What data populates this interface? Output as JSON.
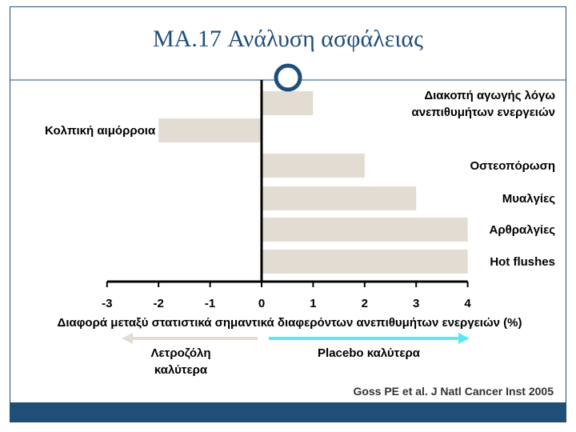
{
  "slide": {
    "title": "MA.17 Ανάλυση ασφάλειας",
    "citation": "Goss PE et al. J Natl Cancer Inst 2005"
  },
  "colors": {
    "accent": "#1f4e79",
    "bar": "#e2dcd3",
    "left_arrow": "#e2dcd3",
    "right_arrow": "#5ee8ee"
  },
  "chart_data": {
    "type": "bar",
    "orientation": "horizontal",
    "categories": [
      [
        "Διακοπή αγωγής λόγω",
        "ανεπιθυμήτων ενεργειών"
      ],
      [
        "Κολπική αιμόρροια"
      ],
      [
        "Οστεοπόρωση"
      ],
      [
        "Μυαλγίες"
      ],
      [
        "Αρθραλγίες"
      ],
      [
        "Hot flushes"
      ]
    ],
    "values": [
      1,
      -2,
      2,
      3,
      4,
      4
    ],
    "xlim": [
      -3,
      4
    ],
    "xticks": [
      "-3",
      "-2",
      "-1",
      "0",
      "1",
      "2",
      "3",
      "4"
    ],
    "xlabel": "Διαφορά μεταξύ στατιστικά σημαντικά διαφερόντων ανεπιθυμήτων ενεργειών (%)",
    "ylabel": "",
    "grid": false,
    "direction_labels": {
      "left": [
        "Λετροζόλη",
        "καλύτερα"
      ],
      "right": [
        "Placebo καλύτερα"
      ]
    }
  }
}
